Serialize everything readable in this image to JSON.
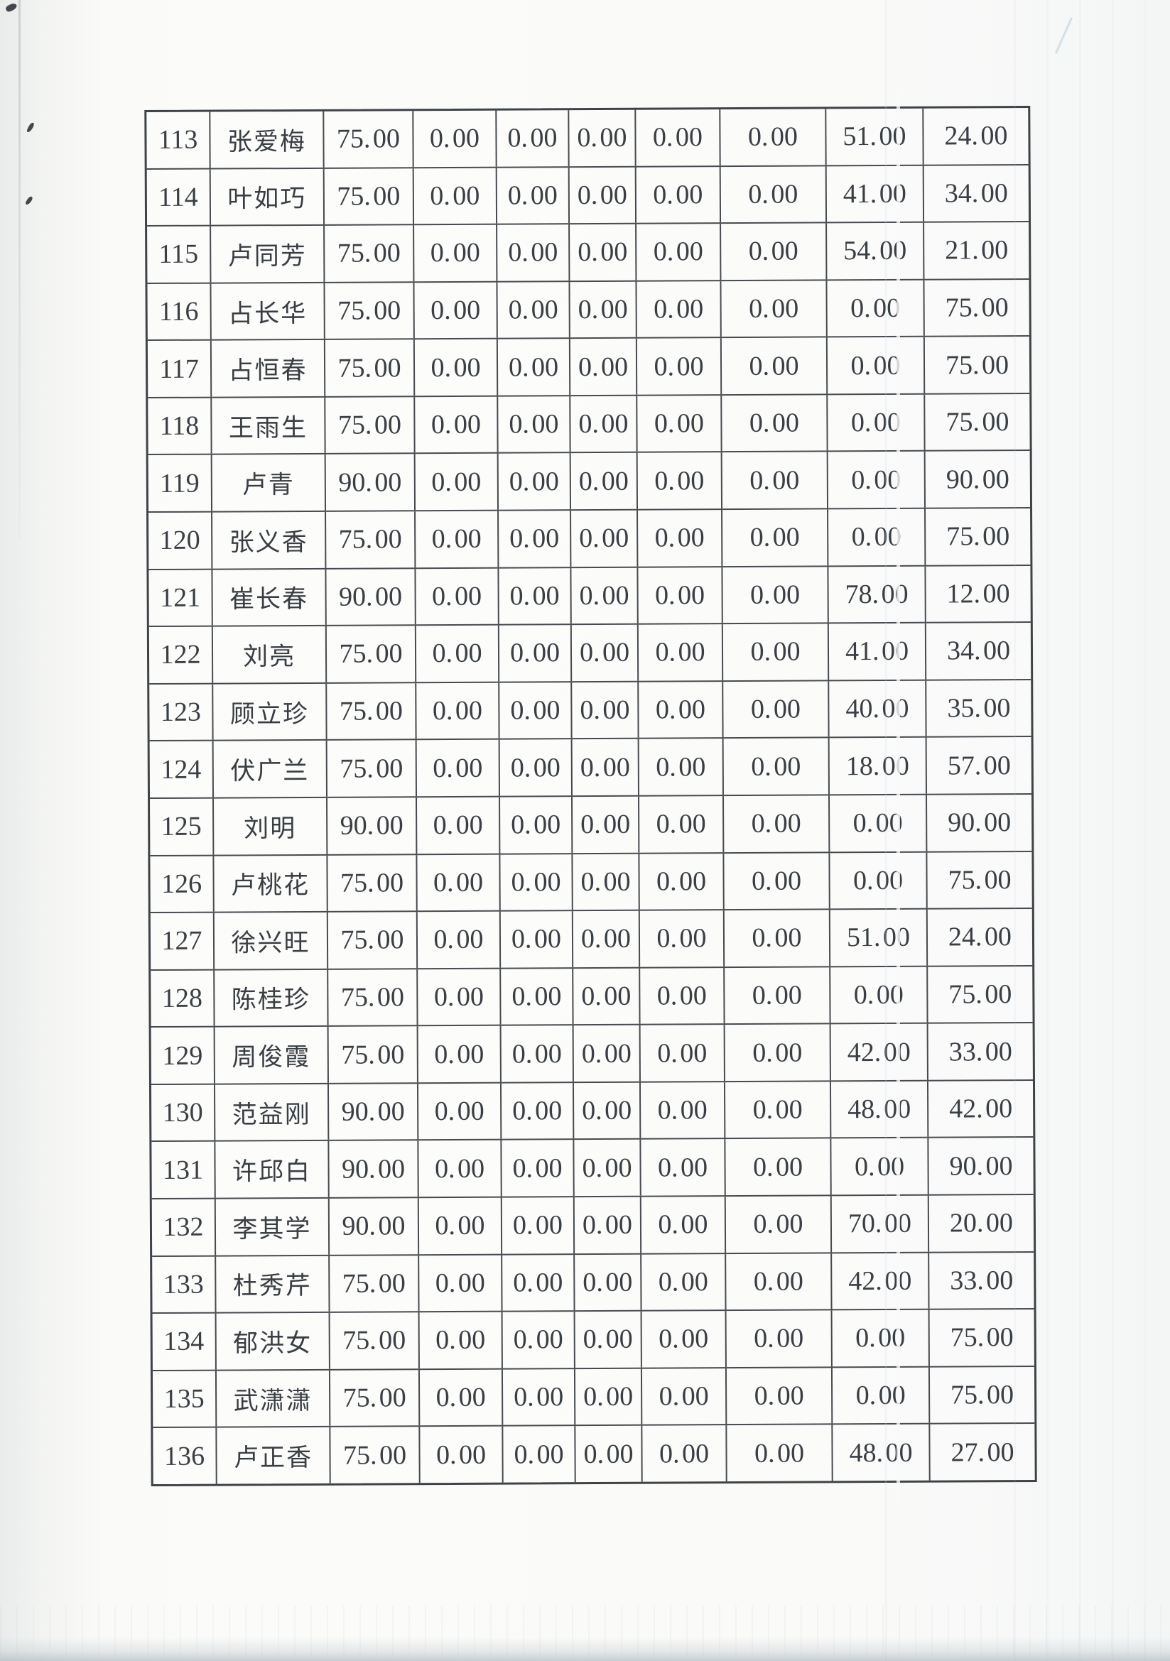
{
  "page": {
    "kind": "scanned paper page of a continued fee/points table, no header row visible",
    "colors": {
      "paper": "#fafaf8",
      "ink": "#3a3f45",
      "grid": "#474b4f",
      "scan_edge": "#a4b1ba"
    }
  },
  "table": {
    "rows": [
      {
        "id": "113",
        "name": "张爱梅",
        "values": [
          "75. 00",
          "0. 00",
          "0. 00",
          "0. 00",
          "0. 00",
          "0. 00",
          "51. 00",
          "24. 00"
        ]
      },
      {
        "id": "114",
        "name": "叶如巧",
        "values": [
          "75. 00",
          "0. 00",
          "0. 00",
          "0. 00",
          "0. 00",
          "0. 00",
          "41. 00",
          "34. 00"
        ]
      },
      {
        "id": "115",
        "name": "卢同芳",
        "values": [
          "75. 00",
          "0. 00",
          "0. 00",
          "0. 00",
          "0. 00",
          "0. 00",
          "54. 00",
          "21. 00"
        ]
      },
      {
        "id": "116",
        "name": "占长华",
        "values": [
          "75. 00",
          "0. 00",
          "0. 00",
          "0. 00",
          "0. 00",
          "0. 00",
          "0. 00",
          "75. 00"
        ]
      },
      {
        "id": "117",
        "name": "占恒春",
        "values": [
          "75. 00",
          "0. 00",
          "0. 00",
          "0. 00",
          "0. 00",
          "0. 00",
          "0. 00",
          "75. 00"
        ]
      },
      {
        "id": "118",
        "name": "王雨生",
        "values": [
          "75. 00",
          "0. 00",
          "0. 00",
          "0. 00",
          "0. 00",
          "0. 00",
          "0. 00",
          "75. 00"
        ]
      },
      {
        "id": "119",
        "name": "卢青",
        "values": [
          "90. 00",
          "0. 00",
          "0. 00",
          "0. 00",
          "0. 00",
          "0. 00",
          "0. 00",
          "90. 00"
        ]
      },
      {
        "id": "120",
        "name": "张义香",
        "values": [
          "75. 00",
          "0. 00",
          "0. 00",
          "0. 00",
          "0. 00",
          "0. 00",
          "0. 00",
          "75. 00"
        ]
      },
      {
        "id": "121",
        "name": "崔长春",
        "values": [
          "90. 00",
          "0. 00",
          "0. 00",
          "0. 00",
          "0. 00",
          "0. 00",
          "78. 00",
          "12. 00"
        ]
      },
      {
        "id": "122",
        "name": "刘亮",
        "values": [
          "75. 00",
          "0. 00",
          "0. 00",
          "0. 00",
          "0. 00",
          "0. 00",
          "41. 00",
          "34. 00"
        ]
      },
      {
        "id": "123",
        "name": "顾立珍",
        "values": [
          "75. 00",
          "0. 00",
          "0. 00",
          "0. 00",
          "0. 00",
          "0. 00",
          "40. 00",
          "35. 00"
        ]
      },
      {
        "id": "124",
        "name": "伏广兰",
        "values": [
          "75. 00",
          "0. 00",
          "0. 00",
          "0. 00",
          "0. 00",
          "0. 00",
          "18. 00",
          "57. 00"
        ]
      },
      {
        "id": "125",
        "name": "刘明",
        "values": [
          "90. 00",
          "0. 00",
          "0. 00",
          "0. 00",
          "0. 00",
          "0. 00",
          "0. 00",
          "90. 00"
        ]
      },
      {
        "id": "126",
        "name": "卢桃花",
        "values": [
          "75. 00",
          "0. 00",
          "0. 00",
          "0. 00",
          "0. 00",
          "0. 00",
          "0. 00",
          "75. 00"
        ]
      },
      {
        "id": "127",
        "name": "徐兴旺",
        "values": [
          "75. 00",
          "0. 00",
          "0. 00",
          "0. 00",
          "0. 00",
          "0. 00",
          "51. 00",
          "24. 00"
        ]
      },
      {
        "id": "128",
        "name": "陈桂珍",
        "values": [
          "75. 00",
          "0. 00",
          "0. 00",
          "0. 00",
          "0. 00",
          "0. 00",
          "0. 00",
          "75. 00"
        ]
      },
      {
        "id": "129",
        "name": "周俊霞",
        "values": [
          "75. 00",
          "0. 00",
          "0. 00",
          "0. 00",
          "0. 00",
          "0. 00",
          "42. 00",
          "33. 00"
        ]
      },
      {
        "id": "130",
        "name": "范益刚",
        "values": [
          "90. 00",
          "0. 00",
          "0. 00",
          "0. 00",
          "0. 00",
          "0. 00",
          "48. 00",
          "42. 00"
        ]
      },
      {
        "id": "131",
        "name": "许邱白",
        "values": [
          "90. 00",
          "0. 00",
          "0. 00",
          "0. 00",
          "0. 00",
          "0. 00",
          "0. 00",
          "90. 00"
        ]
      },
      {
        "id": "132",
        "name": "李其学",
        "values": [
          "90. 00",
          "0. 00",
          "0. 00",
          "0. 00",
          "0. 00",
          "0. 00",
          "70. 00",
          "20. 00"
        ]
      },
      {
        "id": "133",
        "name": "杜秀芹",
        "values": [
          "75. 00",
          "0. 00",
          "0. 00",
          "0. 00",
          "0. 00",
          "0. 00",
          "42. 00",
          "33. 00"
        ]
      },
      {
        "id": "134",
        "name": "郁洪女",
        "values": [
          "75. 00",
          "0. 00",
          "0. 00",
          "0. 00",
          "0. 00",
          "0. 00",
          "0. 00",
          "75. 00"
        ]
      },
      {
        "id": "135",
        "name": "武潇潇",
        "values": [
          "75. 00",
          "0. 00",
          "0. 00",
          "0. 00",
          "0. 00",
          "0. 00",
          "0. 00",
          "75. 00"
        ]
      },
      {
        "id": "136",
        "name": "卢正香",
        "values": [
          "75. 00",
          "0. 00",
          "0. 00",
          "0. 00",
          "0. 00",
          "0. 00",
          "48. 00",
          "27. 00"
        ]
      }
    ]
  }
}
